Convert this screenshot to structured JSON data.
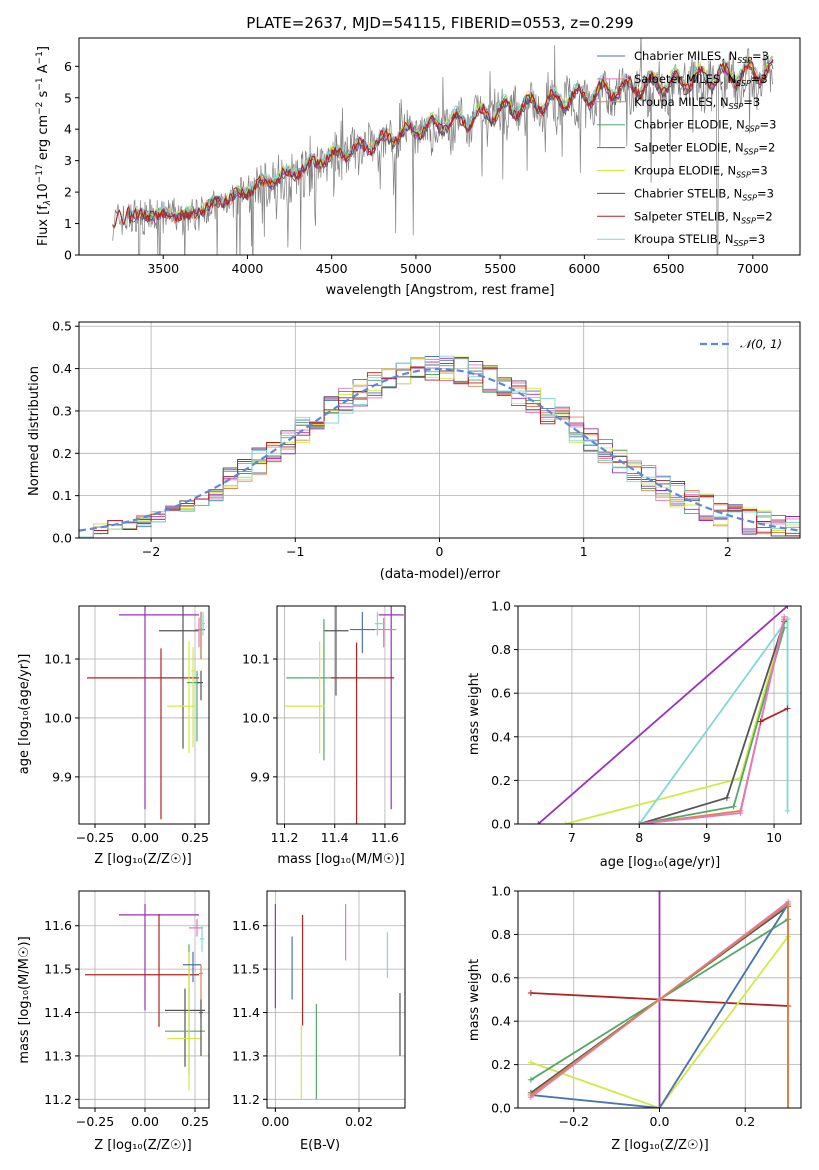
{
  "colors": {
    "chabrier_miles": "#4c72b0",
    "salpeter_miles": "#e377c2",
    "kroupa_miles": "#dd8452",
    "chabrier_elodie": "#55a868",
    "salpeter_elodie": "#9b30b8",
    "kroupa_elodie": "#d4e845",
    "chabrier_stelib": "#555555",
    "salpeter_stelib": "#b22222",
    "kroupa_stelib": "#7fd8d8",
    "gray_data": "#808080",
    "normal_curve": "#5b8ad8"
  },
  "chart_data": [
    {
      "type": "line",
      "title": "PLATE=2637, MJD=54115, FIBERID=0553, z=0.299",
      "xlabel": "wavelength [Angstrom, rest frame]",
      "ylabel": "Flux [f$_\\lambda$10$^{-17}$ erg cm$^{-2}$ s$^{-1}$ A$^{-1}$]",
      "ylabel_parts": {
        "a": "Flux [f",
        "b": "λ",
        "c": "10",
        "d": "−17",
        "e": " erg cm",
        "f": "−2",
        "g": " s",
        "h": "−1",
        "i": " A",
        "j": "−1",
        "k": "]"
      },
      "xlim": [
        3000,
        7280
      ],
      "ylim": [
        0,
        6.9
      ],
      "xticks": [
        "3500",
        "4000",
        "4500",
        "5000",
        "5500",
        "6000",
        "6500",
        "7000"
      ],
      "yticks": [
        "0",
        "1",
        "2",
        "3",
        "4",
        "5",
        "6"
      ],
      "legend": [
        {
          "main": "Chabrier MILES, N",
          "sub": "SSP",
          "tail": "=3"
        },
        {
          "main": "Salpeter MILES, N",
          "sub": "SSP",
          "tail": "=3"
        },
        {
          "main": "Kroupa MILES, N",
          "sub": "SSP",
          "tail": "=3"
        },
        {
          "main": "Chabrier ELODIE, N",
          "sub": "SSP",
          "tail": "=3"
        },
        {
          "main": "Salpeter ELODIE, N",
          "sub": "SSP",
          "tail": "=2"
        },
        {
          "main": "Kroupa ELODIE, N",
          "sub": "SSP",
          "tail": "=3"
        },
        {
          "main": "Chabrier STELIB, N",
          "sub": "SSP",
          "tail": "=3"
        },
        {
          "main": "Salpeter STELIB, N",
          "sub": "SSP",
          "tail": "=2"
        },
        {
          "main": "Kroupa STELIB, N",
          "sub": "SSP",
          "tail": "=3"
        }
      ],
      "continuum_points": [
        [
          3200,
          1.1
        ],
        [
          3300,
          1.3
        ],
        [
          3500,
          1.35
        ],
        [
          3650,
          1.3
        ],
        [
          3800,
          1.7
        ],
        [
          3950,
          2.0
        ],
        [
          4100,
          2.4
        ],
        [
          4300,
          2.8
        ],
        [
          4500,
          3.3
        ],
        [
          4700,
          3.6
        ],
        [
          4900,
          4.0
        ],
        [
          5100,
          4.3
        ],
        [
          5300,
          4.5
        ],
        [
          5500,
          4.8
        ],
        [
          5700,
          5.0
        ],
        [
          5900,
          5.2
        ],
        [
          6100,
          5.4
        ],
        [
          6300,
          5.6
        ],
        [
          6500,
          5.7
        ],
        [
          6700,
          5.85
        ],
        [
          6900,
          6.0
        ],
        [
          7100,
          6.1
        ]
      ]
    },
    {
      "type": "line",
      "xlabel": "(data-model)/error",
      "ylabel": "Normed distribution",
      "xlim": [
        -2.5,
        2.5
      ],
      "ylim": [
        0,
        0.51
      ],
      "xticks": [
        "−2",
        "−1",
        "0",
        "1",
        "2"
      ],
      "yticks": [
        "0.0",
        "0.1",
        "0.2",
        "0.3",
        "0.4",
        "0.5"
      ],
      "legend": [
        {
          "label": "𝒩(0, 1)"
        }
      ],
      "series": [
        {
          "name": "𝒩(0, 1)",
          "mean": 0,
          "sigma": 1
        }
      ]
    },
    {
      "type": "scatter",
      "xlabel": "Z [log₁₀(Z/Z☉)]",
      "ylabel": "age  [log₁₀(age/yr)]",
      "xlim": [
        -0.33,
        0.32
      ],
      "ylim": [
        9.82,
        10.19
      ],
      "xticks": [
        "−0.25",
        "0.00",
        "0.25"
      ],
      "yticks": [
        "9.9",
        "10.0",
        "10.1"
      ]
    },
    {
      "type": "scatter",
      "xlabel": "mass [log₁₀(M/M☉)]",
      "ylabel": "",
      "xlim": [
        11.17,
        11.68
      ],
      "ylim": [
        9.82,
        10.19
      ],
      "xticks": [
        "11.2",
        "11.4",
        "11.6"
      ],
      "yticks": [
        "9.9",
        "10.0",
        "10.1"
      ]
    },
    {
      "type": "line",
      "xlabel": "age  [log₁₀(age/yr)]",
      "ylabel": "mass weight",
      "xlim": [
        6.2,
        10.4
      ],
      "ylim": [
        0,
        1
      ],
      "xticks": [
        "7",
        "8",
        "9",
        "10"
      ],
      "yticks": [
        "0.0",
        "0.2",
        "0.4",
        "0.6",
        "0.8",
        "1.0"
      ]
    },
    {
      "type": "scatter",
      "xlabel": "Z [log₁₀(Z/Z☉)]",
      "ylabel": "mass [log₁₀(M/M☉)]",
      "xlim": [
        -0.33,
        0.32
      ],
      "ylim": [
        11.18,
        11.68
      ],
      "xticks": [
        "−0.25",
        "0.00",
        "0.25"
      ],
      "yticks": [
        "11.2",
        "11.3",
        "11.4",
        "11.5",
        "11.6"
      ]
    },
    {
      "type": "scatter",
      "xlabel": "E(B-V)",
      "ylabel": "",
      "xlim": [
        -0.002,
        0.031
      ],
      "ylim": [
        11.18,
        11.68
      ],
      "xticks": [
        "0.00",
        "0.02"
      ],
      "yticks": [
        "11.2",
        "11.3",
        "11.4",
        "11.5",
        "11.6"
      ]
    },
    {
      "type": "line",
      "xlabel": "Z [log₁₀(Z/Z☉)]",
      "ylabel": "mass weight",
      "xlim": [
        -0.33,
        0.33
      ],
      "ylim": [
        0,
        1
      ],
      "xticks": [
        "−0.2",
        "0.0",
        "0.2"
      ],
      "yticks": [
        "0.0",
        "0.2",
        "0.4",
        "0.6",
        "0.8",
        "1.0"
      ]
    }
  ]
}
